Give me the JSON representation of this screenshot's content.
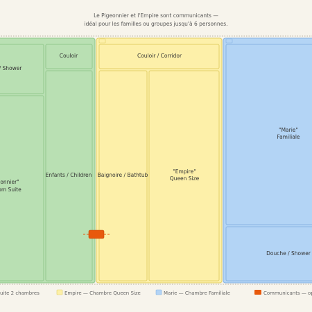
{
  "header": {
    "lines": [
      "Le Pigeonnier et l'Empire sont communicants —",
      "idéal pour les familles ou groupes jusqu'à 6 personnes."
    ]
  },
  "zones": [
    {
      "rooms": [
        {
          "lines": [
            "/ Shower"
          ]
        },
        {
          "lines": [
            "Couloir"
          ]
        },
        {
          "lines": [
            "onnier\"",
            "om Suite"
          ]
        },
        {
          "lines": [
            "Enfants / Children"
          ]
        }
      ]
    },
    {
      "rooms": [
        {
          "lines": [
            "Couloir / Corridor"
          ]
        },
        {
          "lines": [
            "Baignoire / Bathtub"
          ]
        },
        {
          "lines": [
            "\"Empire\"",
            "Queen Size"
          ]
        }
      ]
    },
    {
      "rooms": [
        {
          "lines": [
            "\"Marie\"",
            "Familiale"
          ]
        },
        {
          "lines": [
            "Douche / Shower"
          ]
        }
      ]
    }
  ],
  "legend": [
    "uite 2 chambres",
    "Empire — Chambre Queen Size",
    "Marie — Chambre Familiale",
    "Communicants — opti"
  ]
}
